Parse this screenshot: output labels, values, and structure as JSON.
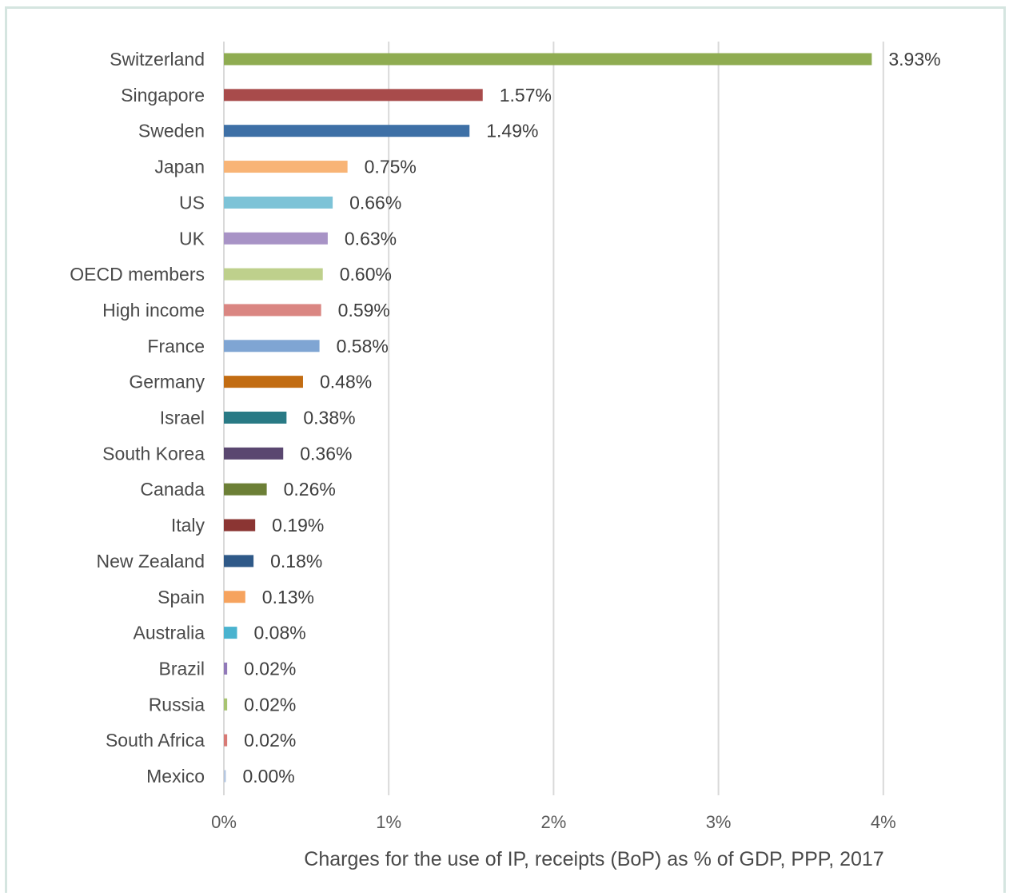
{
  "chart_data": {
    "type": "bar",
    "orientation": "horizontal",
    "xlabel": "Charges for the use of IP, receipts (BoP) as % of GDP, PPP, 2017",
    "xlim": [
      0,
      4
    ],
    "x_ticks": [
      "0%",
      "1%",
      "2%",
      "3%",
      "4%"
    ],
    "grid": true,
    "categories": [
      "Switzerland",
      "Singapore",
      "Sweden",
      "Japan",
      "US",
      "UK",
      "OECD members",
      "High income",
      "France",
      "Germany",
      "Israel",
      "South Korea",
      "Canada",
      "Italy",
      "New Zealand",
      "Spain",
      "Australia",
      "Brazil",
      "Russia",
      "South Africa",
      "Mexico"
    ],
    "values": [
      3.93,
      1.57,
      1.49,
      0.75,
      0.66,
      0.63,
      0.6,
      0.59,
      0.58,
      0.48,
      0.38,
      0.36,
      0.26,
      0.19,
      0.18,
      0.13,
      0.08,
      0.02,
      0.02,
      0.02,
      0.0
    ],
    "value_labels": [
      "3.93%",
      "1.57%",
      "1.49%",
      "0.75%",
      "0.66%",
      "0.63%",
      "0.60%",
      "0.59%",
      "0.58%",
      "0.48%",
      "0.38%",
      "0.36%",
      "0.26%",
      "0.19%",
      "0.18%",
      "0.13%",
      "0.08%",
      "0.02%",
      "0.02%",
      "0.02%",
      "0.00%"
    ],
    "colors": [
      "#8fac51",
      "#a84b4b",
      "#3e70a6",
      "#f8b476",
      "#7dc3d7",
      "#a893c6",
      "#bed08c",
      "#da8682",
      "#7fa5d3",
      "#c26c12",
      "#297a85",
      "#5a4770",
      "#6c7f36",
      "#8b3533",
      "#2f5988",
      "#f6a35e",
      "#4ab3cf",
      "#9179b9",
      "#a8c471",
      "#d87a75",
      "#b5c7e0"
    ]
  }
}
